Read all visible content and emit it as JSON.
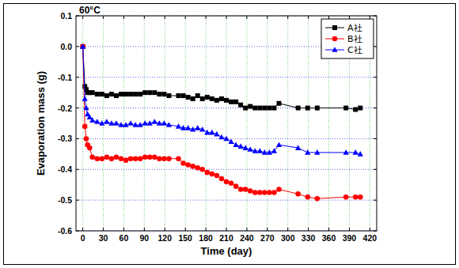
{
  "chart_data": {
    "type": "line",
    "title": "60°C",
    "x_label": "Time (day)",
    "y_label": "Evaporation mass (g)",
    "x": [
      0,
      3,
      5,
      7,
      10,
      14,
      21,
      28,
      35,
      42,
      49,
      56,
      63,
      70,
      77,
      84,
      91,
      98,
      105,
      112,
      119,
      126,
      140,
      147,
      154,
      161,
      168,
      175,
      182,
      189,
      196,
      203,
      210,
      217,
      224,
      231,
      238,
      245,
      252,
      259,
      266,
      273,
      280,
      287,
      315,
      329,
      343,
      385,
      399,
      406
    ],
    "series": [
      {
        "name": "A社",
        "color": "#000000",
        "marker": "square",
        "values": [
          0,
          -0.13,
          -0.14,
          -0.15,
          -0.15,
          -0.15,
          -0.155,
          -0.155,
          -0.16,
          -0.155,
          -0.16,
          -0.155,
          -0.155,
          -0.155,
          -0.155,
          -0.155,
          -0.15,
          -0.15,
          -0.15,
          -0.155,
          -0.155,
          -0.16,
          -0.16,
          -0.16,
          -0.165,
          -0.17,
          -0.16,
          -0.17,
          -0.165,
          -0.17,
          -0.175,
          -0.17,
          -0.175,
          -0.18,
          -0.18,
          -0.19,
          -0.2,
          -0.195,
          -0.2,
          -0.2,
          -0.2,
          -0.2,
          -0.2,
          -0.185,
          -0.2,
          -0.2,
          -0.2,
          -0.2,
          -0.205,
          -0.2
        ]
      },
      {
        "name": "B社",
        "color": "#ff0000",
        "marker": "circle",
        "values": [
          0,
          -0.26,
          -0.3,
          -0.32,
          -0.33,
          -0.36,
          -0.365,
          -0.365,
          -0.36,
          -0.365,
          -0.36,
          -0.365,
          -0.37,
          -0.365,
          -0.365,
          -0.365,
          -0.36,
          -0.36,
          -0.36,
          -0.365,
          -0.365,
          -0.365,
          -0.365,
          -0.38,
          -0.385,
          -0.39,
          -0.395,
          -0.4,
          -0.41,
          -0.415,
          -0.42,
          -0.43,
          -0.44,
          -0.445,
          -0.455,
          -0.465,
          -0.465,
          -0.47,
          -0.475,
          -0.475,
          -0.475,
          -0.475,
          -0.475,
          -0.465,
          -0.48,
          -0.49,
          -0.495,
          -0.49,
          -0.49,
          -0.49
        ]
      },
      {
        "name": "C社",
        "color": "#0000ff",
        "marker": "triangle",
        "values": [
          0,
          -0.17,
          -0.2,
          -0.22,
          -0.23,
          -0.24,
          -0.245,
          -0.25,
          -0.245,
          -0.25,
          -0.25,
          -0.255,
          -0.255,
          -0.25,
          -0.255,
          -0.255,
          -0.25,
          -0.25,
          -0.245,
          -0.25,
          -0.25,
          -0.255,
          -0.26,
          -0.265,
          -0.265,
          -0.27,
          -0.265,
          -0.27,
          -0.28,
          -0.28,
          -0.285,
          -0.295,
          -0.3,
          -0.31,
          -0.32,
          -0.325,
          -0.33,
          -0.335,
          -0.34,
          -0.34,
          -0.345,
          -0.345,
          -0.34,
          -0.32,
          -0.33,
          -0.345,
          -0.345,
          -0.345,
          -0.345,
          -0.35
        ]
      }
    ],
    "xlim": [
      -10,
      430
    ],
    "ylim": [
      -0.6,
      0.1
    ],
    "xticks": [
      0,
      30,
      60,
      90,
      120,
      150,
      180,
      210,
      240,
      270,
      300,
      330,
      360,
      390,
      420
    ],
    "yticks": [
      0.1,
      {
        "value": 0,
        "label": "0.0"
      },
      -0.1,
      -0.2,
      -0.3,
      -0.4,
      -0.5,
      -0.6
    ],
    "grid": true,
    "legend": "top-right"
  }
}
